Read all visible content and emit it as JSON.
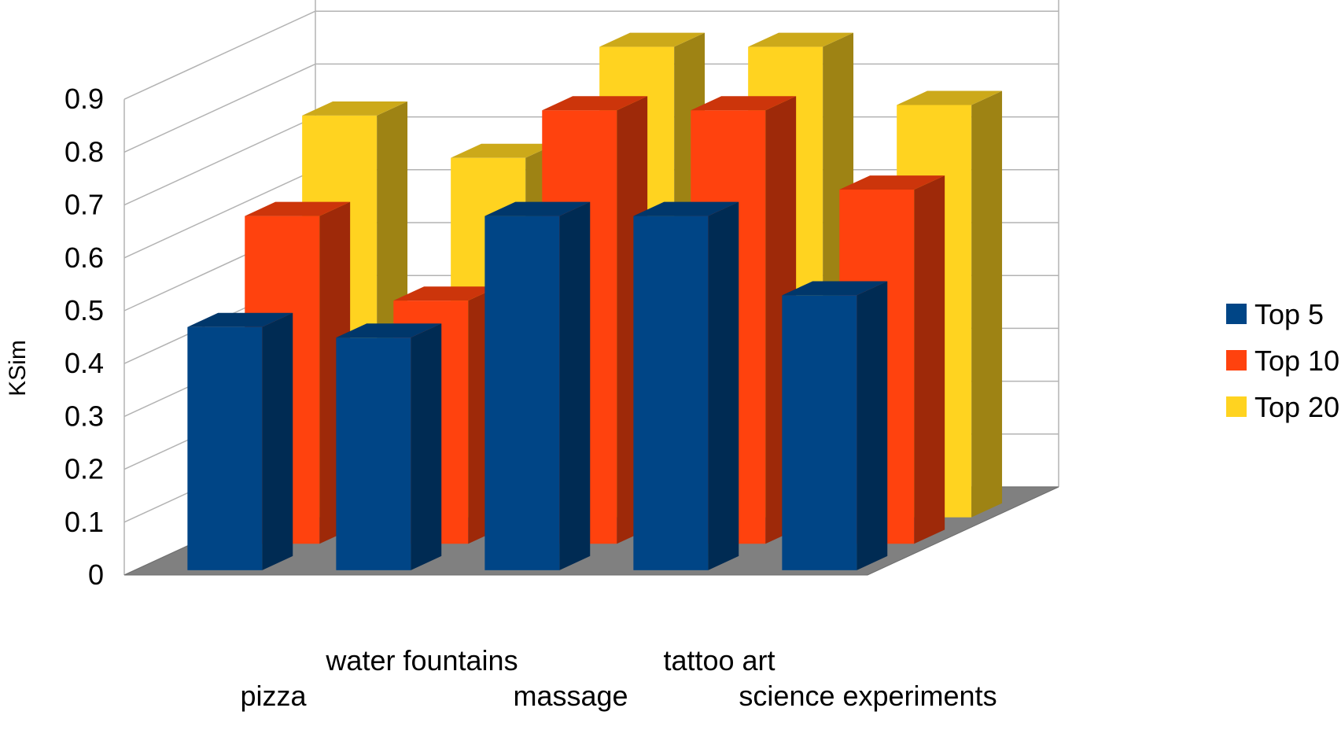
{
  "chart_data": {
    "type": "bar",
    "style": "3d-clustered-deep",
    "title": "",
    "xlabel": "",
    "ylabel": "KSim",
    "ylim": [
      0,
      0.9
    ],
    "yticks": [
      "0",
      "0.1",
      "0.2",
      "0.3",
      "0.4",
      "0.5",
      "0.6",
      "0.7",
      "0.8",
      "0.9"
    ],
    "grid": true,
    "legend_position": "right",
    "categories": [
      "pizza",
      "water fountains",
      "massage",
      "tattoo art",
      "science experiments"
    ],
    "series": [
      {
        "name": "Top 5",
        "color": "#004586",
        "values": [
          0.46,
          0.44,
          0.67,
          0.67,
          0.52
        ]
      },
      {
        "name": "Top 10",
        "color": "#ff420e",
        "values": [
          0.62,
          0.46,
          0.82,
          0.82,
          0.67
        ]
      },
      {
        "name": "Top 20",
        "color": "#ffd320",
        "values": [
          0.76,
          0.68,
          0.89,
          0.89,
          0.78
        ]
      }
    ]
  }
}
